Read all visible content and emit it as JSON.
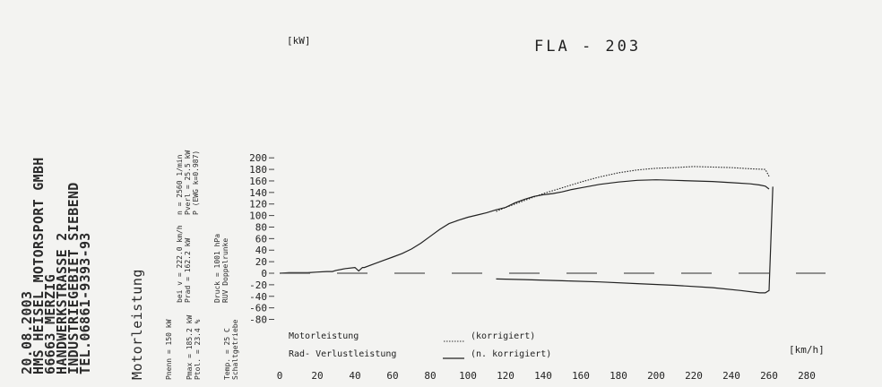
{
  "header": {
    "lines": [
      "20.08.2003",
      "HMS HEISEL MOTORSPORT GMBH",
      "66663 MERZIG",
      "HANDWERKSTRASSE 2",
      "INDUSTRIEGEBIET SIEBEND",
      "TEL.06861-9393-93"
    ],
    "subtitle": "Motorleistung"
  },
  "specs": {
    "col1": [
      "Pnenn = 150  kW",
      "Pmax = 185.2 kW",
      "Ptol. = 23.4 %",
      "Temp. = 25  C",
      "Schaltgetriebe"
    ],
    "col2": [
      "bei v = 222.0 km/h",
      "Prad = 162.2 kW",
      "Druck = 1001  hPa",
      "RUV Doppelrunke"
    ],
    "col3": [
      "n =    2560 1/min",
      "Pverl =  25.5 kW",
      "P      (EWG k=0.987)"
    ]
  },
  "chart_data": {
    "type": "line",
    "title": "FLA  -  203",
    "ylabel": "[kW]",
    "xlabel": "[km/h]",
    "xlim": [
      0,
      280
    ],
    "ylim": [
      -80,
      200
    ],
    "xticks": [
      "0",
      "20",
      "40",
      "60",
      "80",
      "100",
      "120",
      "140",
      "160",
      "180",
      "200",
      "220",
      "240",
      "260",
      "280"
    ],
    "yticks": [
      "200",
      "180",
      "160",
      "140",
      "120",
      "100",
      "80",
      "60",
      "40",
      "20",
      "0",
      "-20",
      "-40",
      "-60",
      "-80"
    ],
    "legend": [
      {
        "label": "Motorleistung",
        "note": "(korrigiert)",
        "style": "dotted"
      },
      {
        "label": "Rad- Verlustleistung",
        "note": "(n. korrigiert)",
        "style": "solid"
      }
    ],
    "series": [
      {
        "key": "motor_corrected",
        "style": "dotted",
        "x": [
          115,
          120,
          130,
          140,
          150,
          160,
          170,
          180,
          190,
          200,
          210,
          220,
          230,
          240,
          250,
          258,
          260
        ],
        "y": [
          107,
          114,
          126,
          138,
          148,
          158,
          167,
          174,
          179,
          182,
          183,
          185,
          184,
          183,
          181,
          180,
          168
        ]
      },
      {
        "key": "wheel",
        "style": "solid",
        "x": [
          0,
          5,
          10,
          15,
          20,
          25,
          28,
          30,
          35,
          40,
          42,
          44,
          45,
          50,
          55,
          60,
          65,
          70,
          75,
          80,
          85,
          90,
          95,
          100,
          105,
          110,
          115,
          120,
          125,
          130,
          135,
          140,
          145,
          150,
          155,
          160,
          170,
          180,
          190,
          200,
          210,
          220,
          230,
          240,
          250,
          255,
          258,
          260
        ],
        "y": [
          0,
          1,
          1,
          1,
          2,
          3,
          3,
          5,
          8,
          10,
          4,
          10,
          10,
          16,
          22,
          28,
          34,
          42,
          52,
          64,
          76,
          86,
          92,
          97,
          101,
          105,
          110,
          114,
          122,
          128,
          133,
          136,
          138,
          141,
          145,
          148,
          154,
          158,
          161,
          162,
          161,
          160,
          159,
          157,
          155,
          153,
          151,
          146
        ]
      },
      {
        "key": "loss",
        "style": "solid",
        "x": [
          115,
          130,
          150,
          170,
          190,
          210,
          230,
          245,
          255,
          258,
          260,
          261,
          262
        ],
        "y": [
          -10,
          -11,
          -13,
          -15,
          -18,
          -21,
          -25,
          -30,
          -34,
          -34,
          -30,
          60,
          150
        ]
      },
      {
        "key": "zero_ref",
        "style": "dashed",
        "x": [
          0,
          290
        ],
        "y": [
          0,
          0
        ]
      }
    ]
  }
}
